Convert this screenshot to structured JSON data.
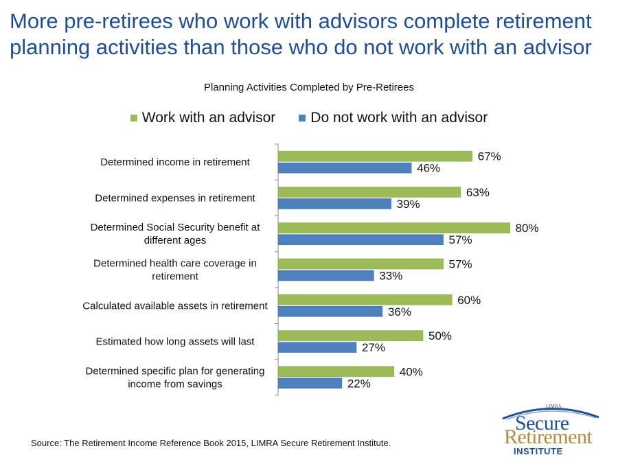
{
  "headline": "More pre-retirees who work with advisors complete retirement planning activities than those who do not work with an advisor",
  "source": "Source: The Retirement Income Reference Book 2015, LIMRA Secure Retirement Institute.",
  "logo": {
    "top_label": "LIMRA",
    "line1": "Secure",
    "line2": "Retirement",
    "line3": "INSTITUTE"
  },
  "colors": {
    "advisor": "#9bbb59",
    "no_advisor": "#4f81bd",
    "headline": "#1f4e96"
  },
  "chart_data": {
    "type": "bar",
    "orientation": "horizontal",
    "title": "Planning Activities Completed by Pre-Retirees",
    "xlim": [
      0,
      100
    ],
    "grid": false,
    "legend_position": "top",
    "categories": [
      [
        "Determined income in retirement"
      ],
      [
        "Determined expenses in retirement"
      ],
      [
        "Determined Social Security benefit at",
        "different ages"
      ],
      [
        "Determined health care coverage in",
        "retirement"
      ],
      [
        "Calculated available assets in retirement"
      ],
      [
        "Estimated how long assets will last"
      ],
      [
        "Determined specific plan for generating",
        "income from savings"
      ]
    ],
    "series": [
      {
        "name": "Work with an advisor",
        "color": "#9bbb59",
        "values": [
          67,
          63,
          80,
          57,
          60,
          50,
          40
        ],
        "labels": [
          "67%",
          "63%",
          "80%",
          "57%",
          "60%",
          "50%",
          "40%"
        ]
      },
      {
        "name": "Do not work with an advisor",
        "color": "#4f81bd",
        "values": [
          46,
          39,
          57,
          33,
          36,
          27,
          22
        ],
        "labels": [
          "46%",
          "39%",
          "57%",
          "33%",
          "36%",
          "27%",
          "22%"
        ]
      }
    ]
  }
}
